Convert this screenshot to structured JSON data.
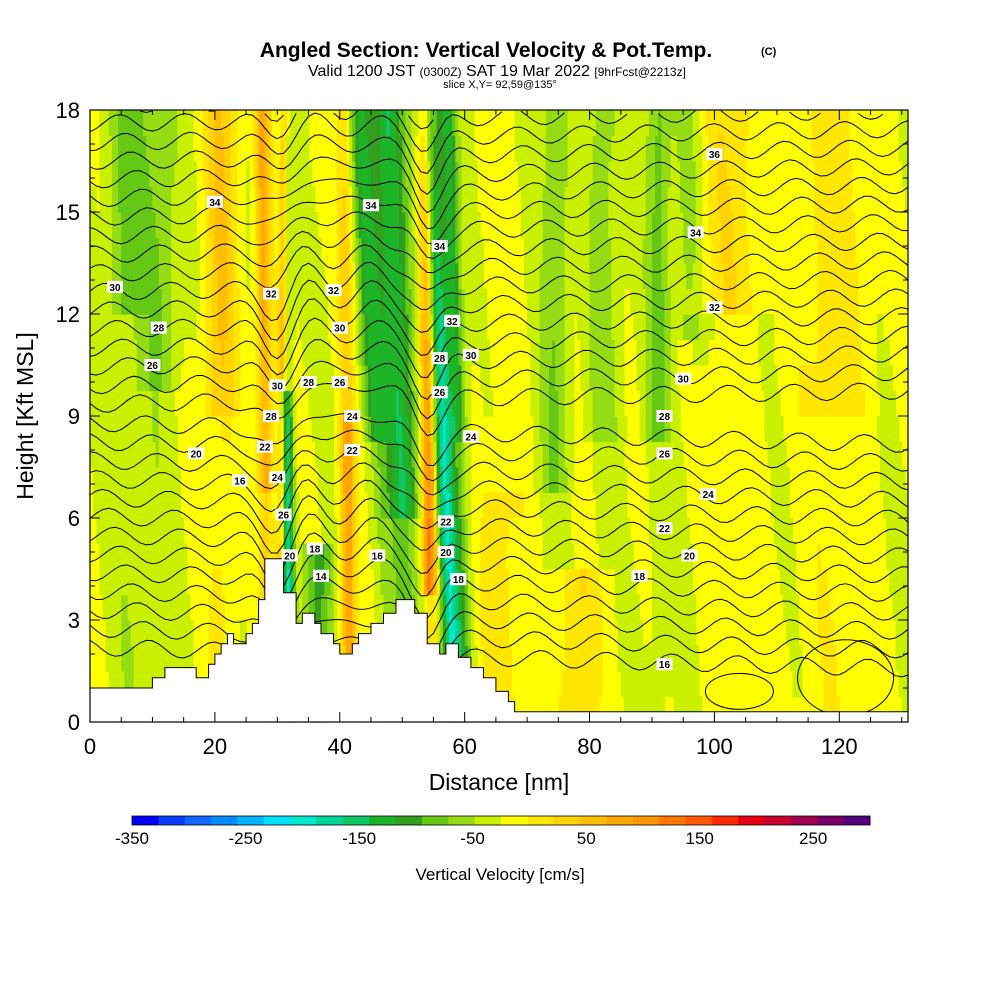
{
  "chart_data": {
    "type": "heatmap",
    "title": "Angled Section: Vertical Velocity & Pot.Temp.",
    "title_unit": "(C)",
    "subtitle_main": "Valid 1200 JST",
    "subtitle_zulu": "(0300Z)",
    "subtitle_date": "SAT 19 Mar 2022",
    "subtitle_fcst": "[9hrFcst@2213z]",
    "slice_label": "slice X,Y= 92,59@135°",
    "xlabel": "Distance [nm]",
    "ylabel": "Height [Kft MSL]",
    "xlim": [
      0,
      131
    ],
    "ylim": [
      0,
      18
    ],
    "x_ticks": [
      0,
      20,
      40,
      60,
      80,
      100,
      120
    ],
    "y_ticks": [
      0,
      3,
      6,
      9,
      12,
      15,
      18
    ],
    "colorbar": {
      "label": "Vertical Velocity [cm/s]",
      "range": [
        -350,
        300
      ],
      "step": 25,
      "tick_values": [
        -350,
        -250,
        -150,
        -50,
        50,
        150,
        250
      ],
      "colors": [
        "#0000ff",
        "#0a3cff",
        "#1466ff",
        "#008cff",
        "#00b4ff",
        "#00e0ff",
        "#00e8c8",
        "#00d496",
        "#10c864",
        "#1eb428",
        "#32a01e",
        "#64c814",
        "#96dc14",
        "#c8f000",
        "#ffff00",
        "#ffe600",
        "#ffd200",
        "#ffbe00",
        "#ffa800",
        "#ff9600",
        "#ff7800",
        "#ff5a00",
        "#ff2800",
        "#e60014",
        "#c8002d",
        "#a0004b",
        "#780064",
        "#500078"
      ]
    },
    "theta_contour_labels": [
      {
        "value": "34",
        "x": 20,
        "h": 15.3
      },
      {
        "value": "34",
        "x": 45,
        "h": 15.2
      },
      {
        "value": "34",
        "x": 56,
        "h": 14.0
      },
      {
        "value": "34",
        "x": 97,
        "h": 14.4
      },
      {
        "value": "36",
        "x": 100,
        "h": 16.7
      },
      {
        "value": "30",
        "x": 4,
        "h": 12.8
      },
      {
        "value": "32",
        "x": 29,
        "h": 12.6
      },
      {
        "value": "32",
        "x": 39,
        "h": 12.7
      },
      {
        "value": "32",
        "x": 58,
        "h": 11.8
      },
      {
        "value": "32",
        "x": 100,
        "h": 12.2
      },
      {
        "value": "28",
        "x": 11,
        "h": 11.6
      },
      {
        "value": "30",
        "x": 40,
        "h": 11.6
      },
      {
        "value": "26",
        "x": 10,
        "h": 10.5
      },
      {
        "value": "28",
        "x": 56,
        "h": 10.7
      },
      {
        "value": "30",
        "x": 61,
        "h": 10.8
      },
      {
        "value": "30",
        "x": 30,
        "h": 9.9
      },
      {
        "value": "28",
        "x": 35,
        "h": 10.0
      },
      {
        "value": "26",
        "x": 40,
        "h": 10.0
      },
      {
        "value": "26",
        "x": 56,
        "h": 9.7
      },
      {
        "value": "30",
        "x": 95,
        "h": 10.1
      },
      {
        "value": "28",
        "x": 29,
        "h": 9.0
      },
      {
        "value": "24",
        "x": 42,
        "h": 9.0
      },
      {
        "value": "28",
        "x": 92,
        "h": 9.0
      },
      {
        "value": "24",
        "x": 61,
        "h": 8.4
      },
      {
        "value": "22",
        "x": 28,
        "h": 8.1
      },
      {
        "value": "22",
        "x": 42,
        "h": 8.0
      },
      {
        "value": "20",
        "x": 17,
        "h": 7.9
      },
      {
        "value": "26",
        "x": 92,
        "h": 7.9
      },
      {
        "value": "16",
        "x": 24,
        "h": 7.1
      },
      {
        "value": "24",
        "x": 30,
        "h": 7.2
      },
      {
        "value": "24",
        "x": 99,
        "h": 6.7
      },
      {
        "value": "26",
        "x": 31,
        "h": 6.1
      },
      {
        "value": "22",
        "x": 57,
        "h": 5.9
      },
      {
        "value": "22",
        "x": 92,
        "h": 5.7
      },
      {
        "value": "18",
        "x": 36,
        "h": 5.1
      },
      {
        "value": "20",
        "x": 32,
        "h": 4.9
      },
      {
        "value": "20",
        "x": 57,
        "h": 5.0
      },
      {
        "value": "16",
        "x": 46,
        "h": 4.9
      },
      {
        "value": "20",
        "x": 96,
        "h": 4.9
      },
      {
        "value": "18",
        "x": 88,
        "h": 4.3
      },
      {
        "value": "14",
        "x": 37,
        "h": 4.3
      },
      {
        "value": "18",
        "x": 59,
        "h": 4.2
      },
      {
        "value": "16",
        "x": 92,
        "h": 1.7
      }
    ]
  }
}
